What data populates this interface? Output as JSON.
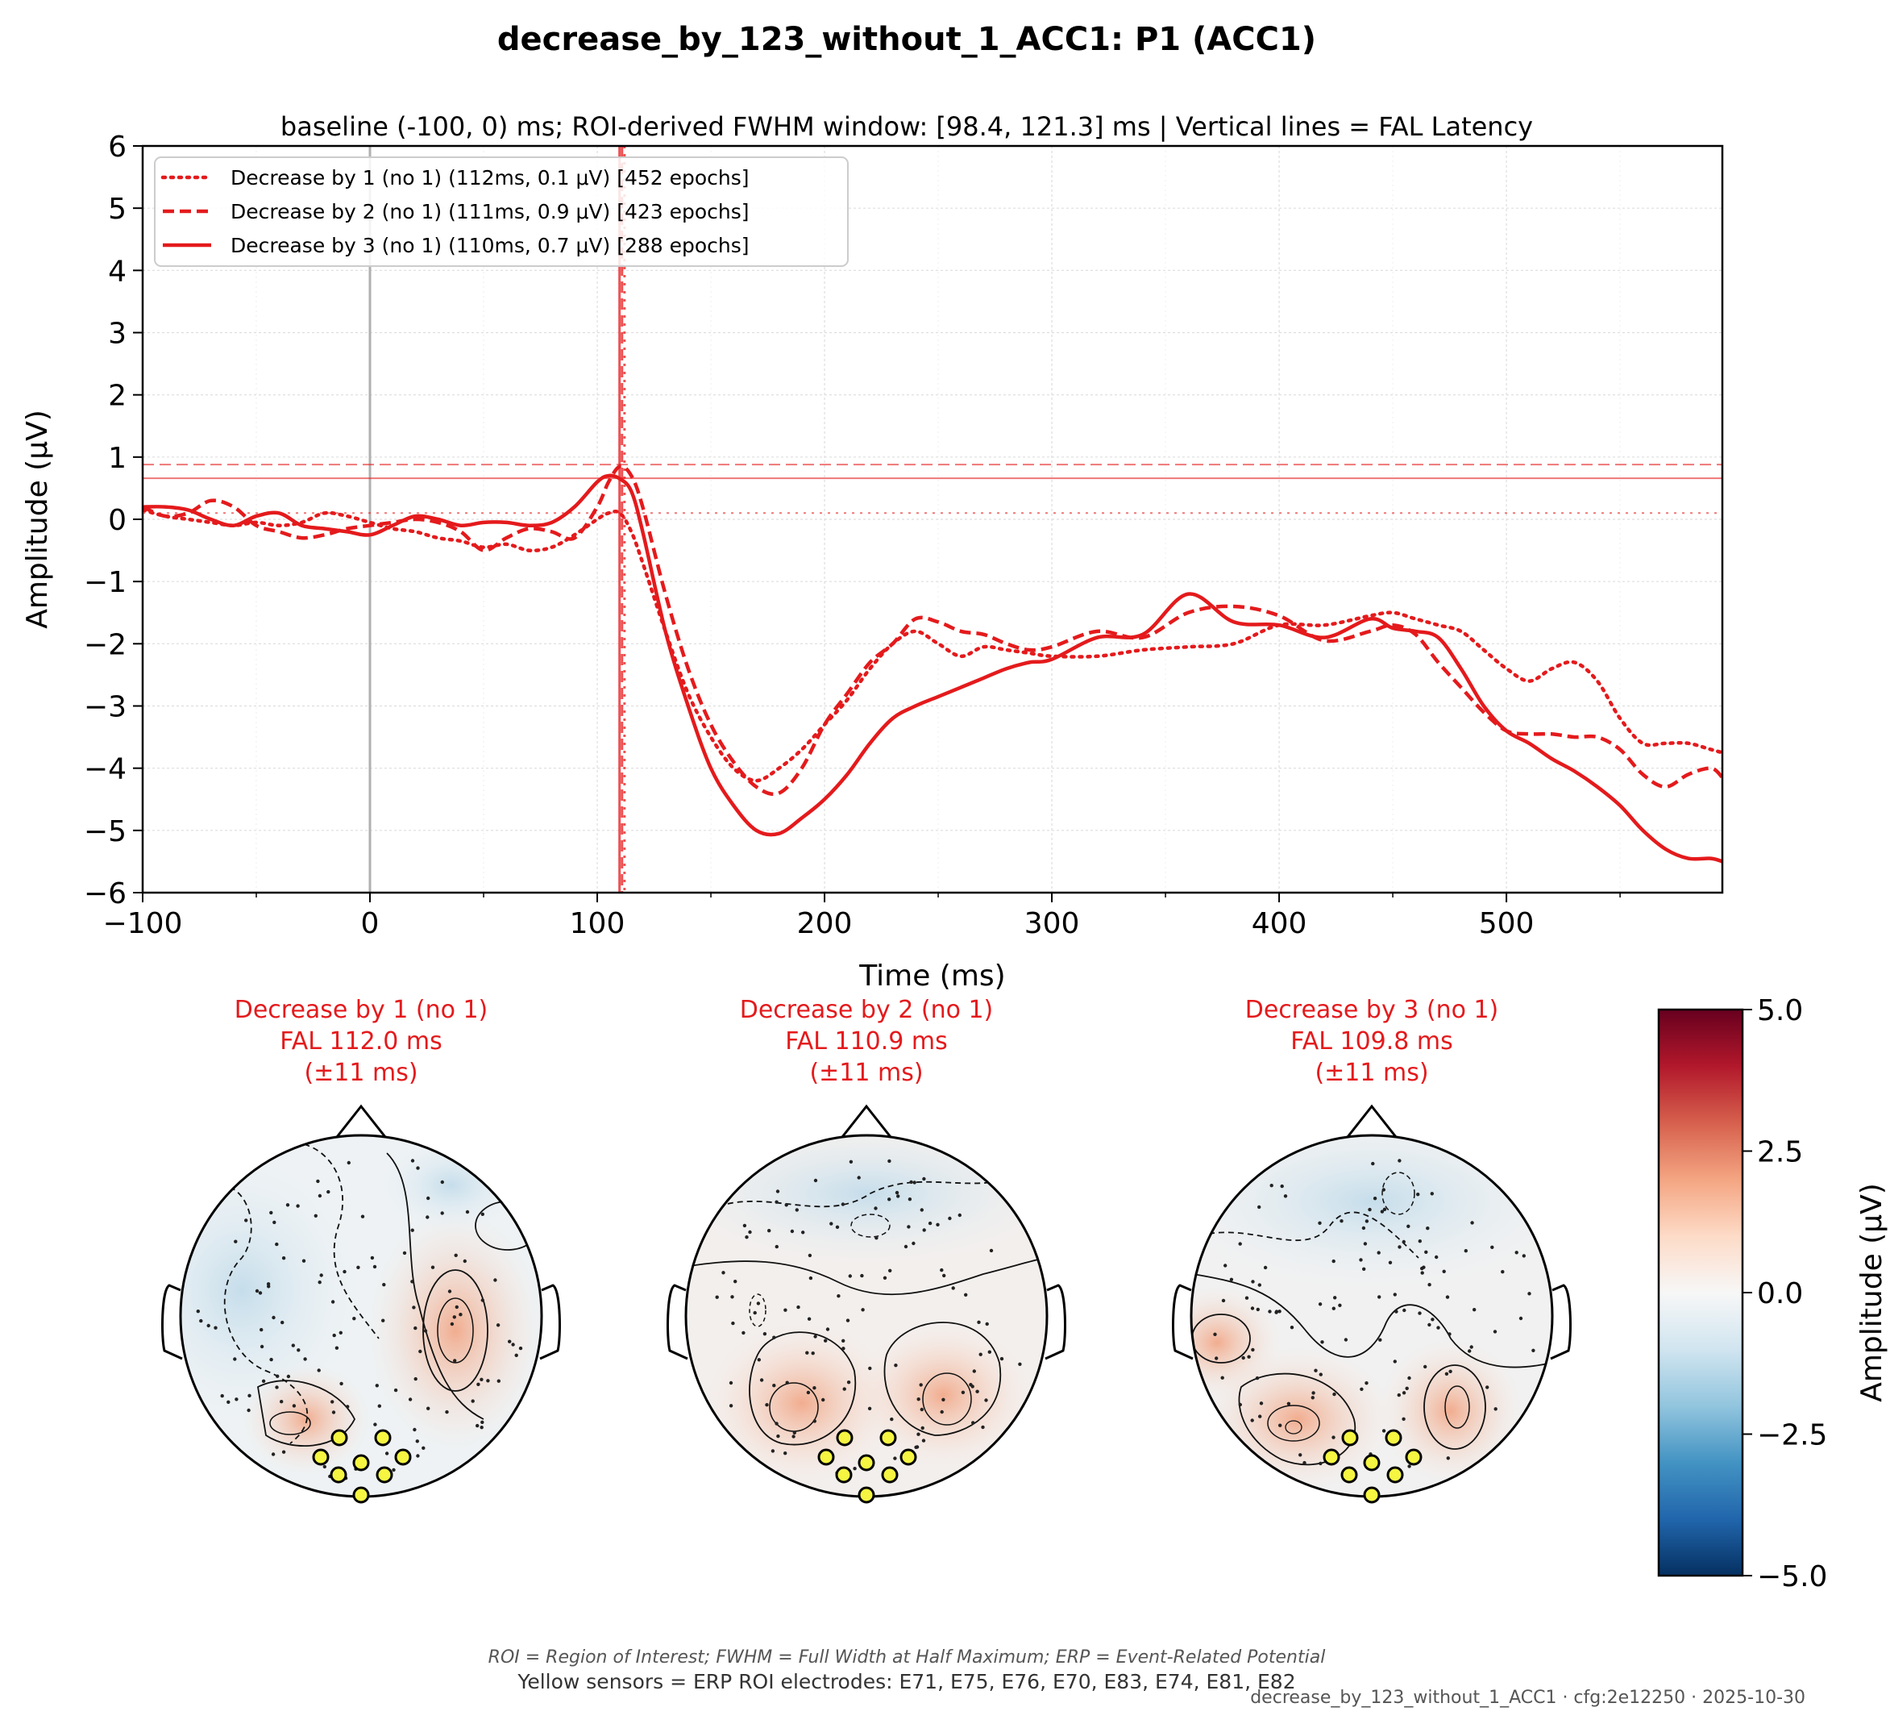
{
  "figure": {
    "title": "decrease_by_123_without_1_ACC1: P1 (ACC1)",
    "footnote_abbrev": "ROI = Region of Interest; FWHM = Full Width at Half Maximum; ERP = Event-Related Potential",
    "footnote_sensors": "Yellow sensors = ERP ROI electrodes: E71, E75, E76, E70, E83, E74, E81, E82",
    "footnote_meta": "decrease_by_123_without_1_ACC1 · cfg:2e12250 · 2025-10-30"
  },
  "chart_data": [
    {
      "type": "line",
      "title": "baseline (-100, 0) ms; ROI-derived FWHM window: [98.4, 121.3] ms | Vertical lines = FAL Latency",
      "xlabel": "Time (ms)",
      "ylabel": "Amplitude (μV)",
      "xlim": [
        -100,
        595
      ],
      "ylim": [
        -6,
        6
      ],
      "xticks": [
        -100,
        0,
        100,
        200,
        300,
        400,
        500
      ],
      "yticks": [
        -6,
        -5,
        -4,
        -3,
        -2,
        -1,
        0,
        1,
        2,
        3,
        4,
        5,
        6
      ],
      "grid": true,
      "legend_position": "top-left",
      "baseline_marker_ms": 0,
      "series": [
        {
          "name": "Decrease by 1 (no 1) (112ms, 0.1 μV) [452 epochs]",
          "style": "dotted",
          "color": "#e41a1c",
          "peak_latency_ms": 112,
          "peak_amplitude_uv": 0.1,
          "x": [
            -100,
            -90,
            -80,
            -70,
            -60,
            -50,
            -40,
            -30,
            -20,
            -10,
            0,
            10,
            20,
            30,
            40,
            50,
            60,
            70,
            80,
            90,
            100,
            105,
            110,
            115,
            120,
            130,
            140,
            150,
            160,
            170,
            180,
            190,
            200,
            210,
            220,
            230,
            240,
            250,
            260,
            270,
            280,
            290,
            300,
            320,
            340,
            360,
            380,
            400,
            420,
            440,
            450,
            460,
            470,
            480,
            490,
            500,
            510,
            520,
            530,
            540,
            550,
            560,
            570,
            580,
            590,
            595
          ],
          "y": [
            0.15,
            0.05,
            0.0,
            -0.05,
            -0.1,
            -0.05,
            -0.1,
            -0.05,
            0.1,
            0.05,
            -0.05,
            -0.15,
            -0.2,
            -0.3,
            -0.35,
            -0.45,
            -0.4,
            -0.5,
            -0.45,
            -0.25,
            0.0,
            0.1,
            0.1,
            -0.2,
            -0.7,
            -1.8,
            -2.8,
            -3.5,
            -4.0,
            -4.2,
            -4.0,
            -3.7,
            -3.3,
            -2.9,
            -2.4,
            -2.0,
            -1.8,
            -2.0,
            -2.2,
            -2.05,
            -2.1,
            -2.15,
            -2.2,
            -2.2,
            -2.1,
            -2.05,
            -2.0,
            -1.7,
            -1.7,
            -1.55,
            -1.5,
            -1.6,
            -1.7,
            -1.8,
            -2.1,
            -2.4,
            -2.6,
            -2.4,
            -2.3,
            -2.6,
            -3.2,
            -3.6,
            -3.6,
            -3.6,
            -3.7,
            -3.75
          ]
        },
        {
          "name": "Decrease by 2 (no 1) (111ms, 0.9 μV) [423 epochs]",
          "style": "dashed",
          "color": "#e41a1c",
          "peak_latency_ms": 111,
          "peak_amplitude_uv": 0.9,
          "x": [
            -100,
            -90,
            -80,
            -70,
            -60,
            -50,
            -40,
            -30,
            -20,
            -10,
            0,
            10,
            20,
            30,
            40,
            50,
            60,
            70,
            80,
            90,
            100,
            105,
            110,
            115,
            120,
            130,
            140,
            150,
            160,
            170,
            180,
            190,
            200,
            210,
            220,
            230,
            240,
            250,
            260,
            270,
            280,
            290,
            300,
            320,
            340,
            360,
            380,
            400,
            420,
            440,
            450,
            460,
            470,
            480,
            490,
            500,
            510,
            520,
            530,
            540,
            550,
            560,
            570,
            580,
            590,
            595
          ],
          "y": [
            0.2,
            0.05,
            0.1,
            0.3,
            0.2,
            -0.1,
            -0.2,
            -0.3,
            -0.25,
            -0.15,
            -0.1,
            -0.05,
            0.0,
            -0.05,
            -0.2,
            -0.5,
            -0.3,
            -0.15,
            -0.2,
            -0.3,
            0.2,
            0.6,
            0.85,
            0.7,
            0.2,
            -1.2,
            -2.4,
            -3.3,
            -3.9,
            -4.3,
            -4.4,
            -4.0,
            -3.3,
            -2.8,
            -2.3,
            -2.0,
            -1.6,
            -1.65,
            -1.8,
            -1.85,
            -2.0,
            -2.1,
            -2.05,
            -1.8,
            -1.9,
            -1.5,
            -1.4,
            -1.55,
            -1.95,
            -1.8,
            -1.7,
            -1.85,
            -2.3,
            -2.7,
            -3.1,
            -3.4,
            -3.45,
            -3.45,
            -3.5,
            -3.5,
            -3.7,
            -4.1,
            -4.3,
            -4.1,
            -4.0,
            -4.15
          ]
        },
        {
          "name": "Decrease by 3 (no 1) (110ms, 0.7 μV) [288 epochs]",
          "style": "solid",
          "color": "#e41a1c",
          "peak_latency_ms": 110,
          "peak_amplitude_uv": 0.7,
          "x": [
            -100,
            -90,
            -80,
            -70,
            -60,
            -50,
            -40,
            -30,
            -20,
            -10,
            0,
            10,
            20,
            30,
            40,
            50,
            60,
            70,
            80,
            90,
            100,
            105,
            110,
            115,
            120,
            130,
            140,
            150,
            160,
            170,
            180,
            190,
            200,
            210,
            220,
            230,
            240,
            250,
            260,
            270,
            280,
            290,
            300,
            320,
            340,
            360,
            380,
            400,
            420,
            440,
            450,
            460,
            470,
            480,
            490,
            500,
            510,
            520,
            530,
            540,
            550,
            560,
            570,
            580,
            590,
            595
          ],
          "y": [
            0.2,
            0.2,
            0.15,
            0.0,
            -0.1,
            0.05,
            0.1,
            -0.1,
            -0.15,
            -0.2,
            -0.25,
            -0.1,
            0.05,
            0.0,
            -0.1,
            -0.05,
            -0.05,
            -0.1,
            -0.05,
            0.2,
            0.6,
            0.7,
            0.65,
            0.45,
            -0.2,
            -1.8,
            -3.0,
            -4.0,
            -4.6,
            -5.0,
            -5.05,
            -4.8,
            -4.5,
            -4.1,
            -3.6,
            -3.2,
            -3.0,
            -2.85,
            -2.7,
            -2.55,
            -2.4,
            -2.3,
            -2.25,
            -1.9,
            -1.85,
            -1.2,
            -1.65,
            -1.7,
            -1.9,
            -1.6,
            -1.75,
            -1.8,
            -1.9,
            -2.4,
            -3.0,
            -3.4,
            -3.6,
            -3.85,
            -4.05,
            -4.3,
            -4.6,
            -5.0,
            -5.3,
            -5.45,
            -5.45,
            -5.5
          ]
        }
      ],
      "reference_lines": {
        "latency_ms": [
          112.0,
          110.9,
          109.8
        ],
        "amplitude_uv": [
          0.1,
          0.88,
          0.66
        ]
      }
    }
  ],
  "topomaps": [
    {
      "title_lines": [
        "Decrease by 1 (no 1)",
        "FAL 112.0 ms",
        "(±11 ms)"
      ]
    },
    {
      "title_lines": [
        "Decrease by 2 (no 1)",
        "FAL 110.9 ms",
        "(±11 ms)"
      ]
    },
    {
      "title_lines": [
        "Decrease by 3 (no 1)",
        "FAL 109.8 ms",
        "(±11 ms)"
      ]
    }
  ],
  "colorbar": {
    "label": "Amplitude (μV)",
    "ticks": [
      "5.0",
      "2.5",
      "0.0",
      "−2.5",
      "−5.0"
    ],
    "colors": [
      "#67001f",
      "#b2182b",
      "#d6604d",
      "#f4a582",
      "#fddbc7",
      "#f7f7f7",
      "#d1e5f0",
      "#92c5de",
      "#4393c3",
      "#2166ac",
      "#053061"
    ]
  },
  "colors": {
    "series": "#e41a1c",
    "roi_sensor": "#f5f542",
    "topomap_positive": "#f4b59a",
    "topomap_negative": "#cfe3ee"
  }
}
